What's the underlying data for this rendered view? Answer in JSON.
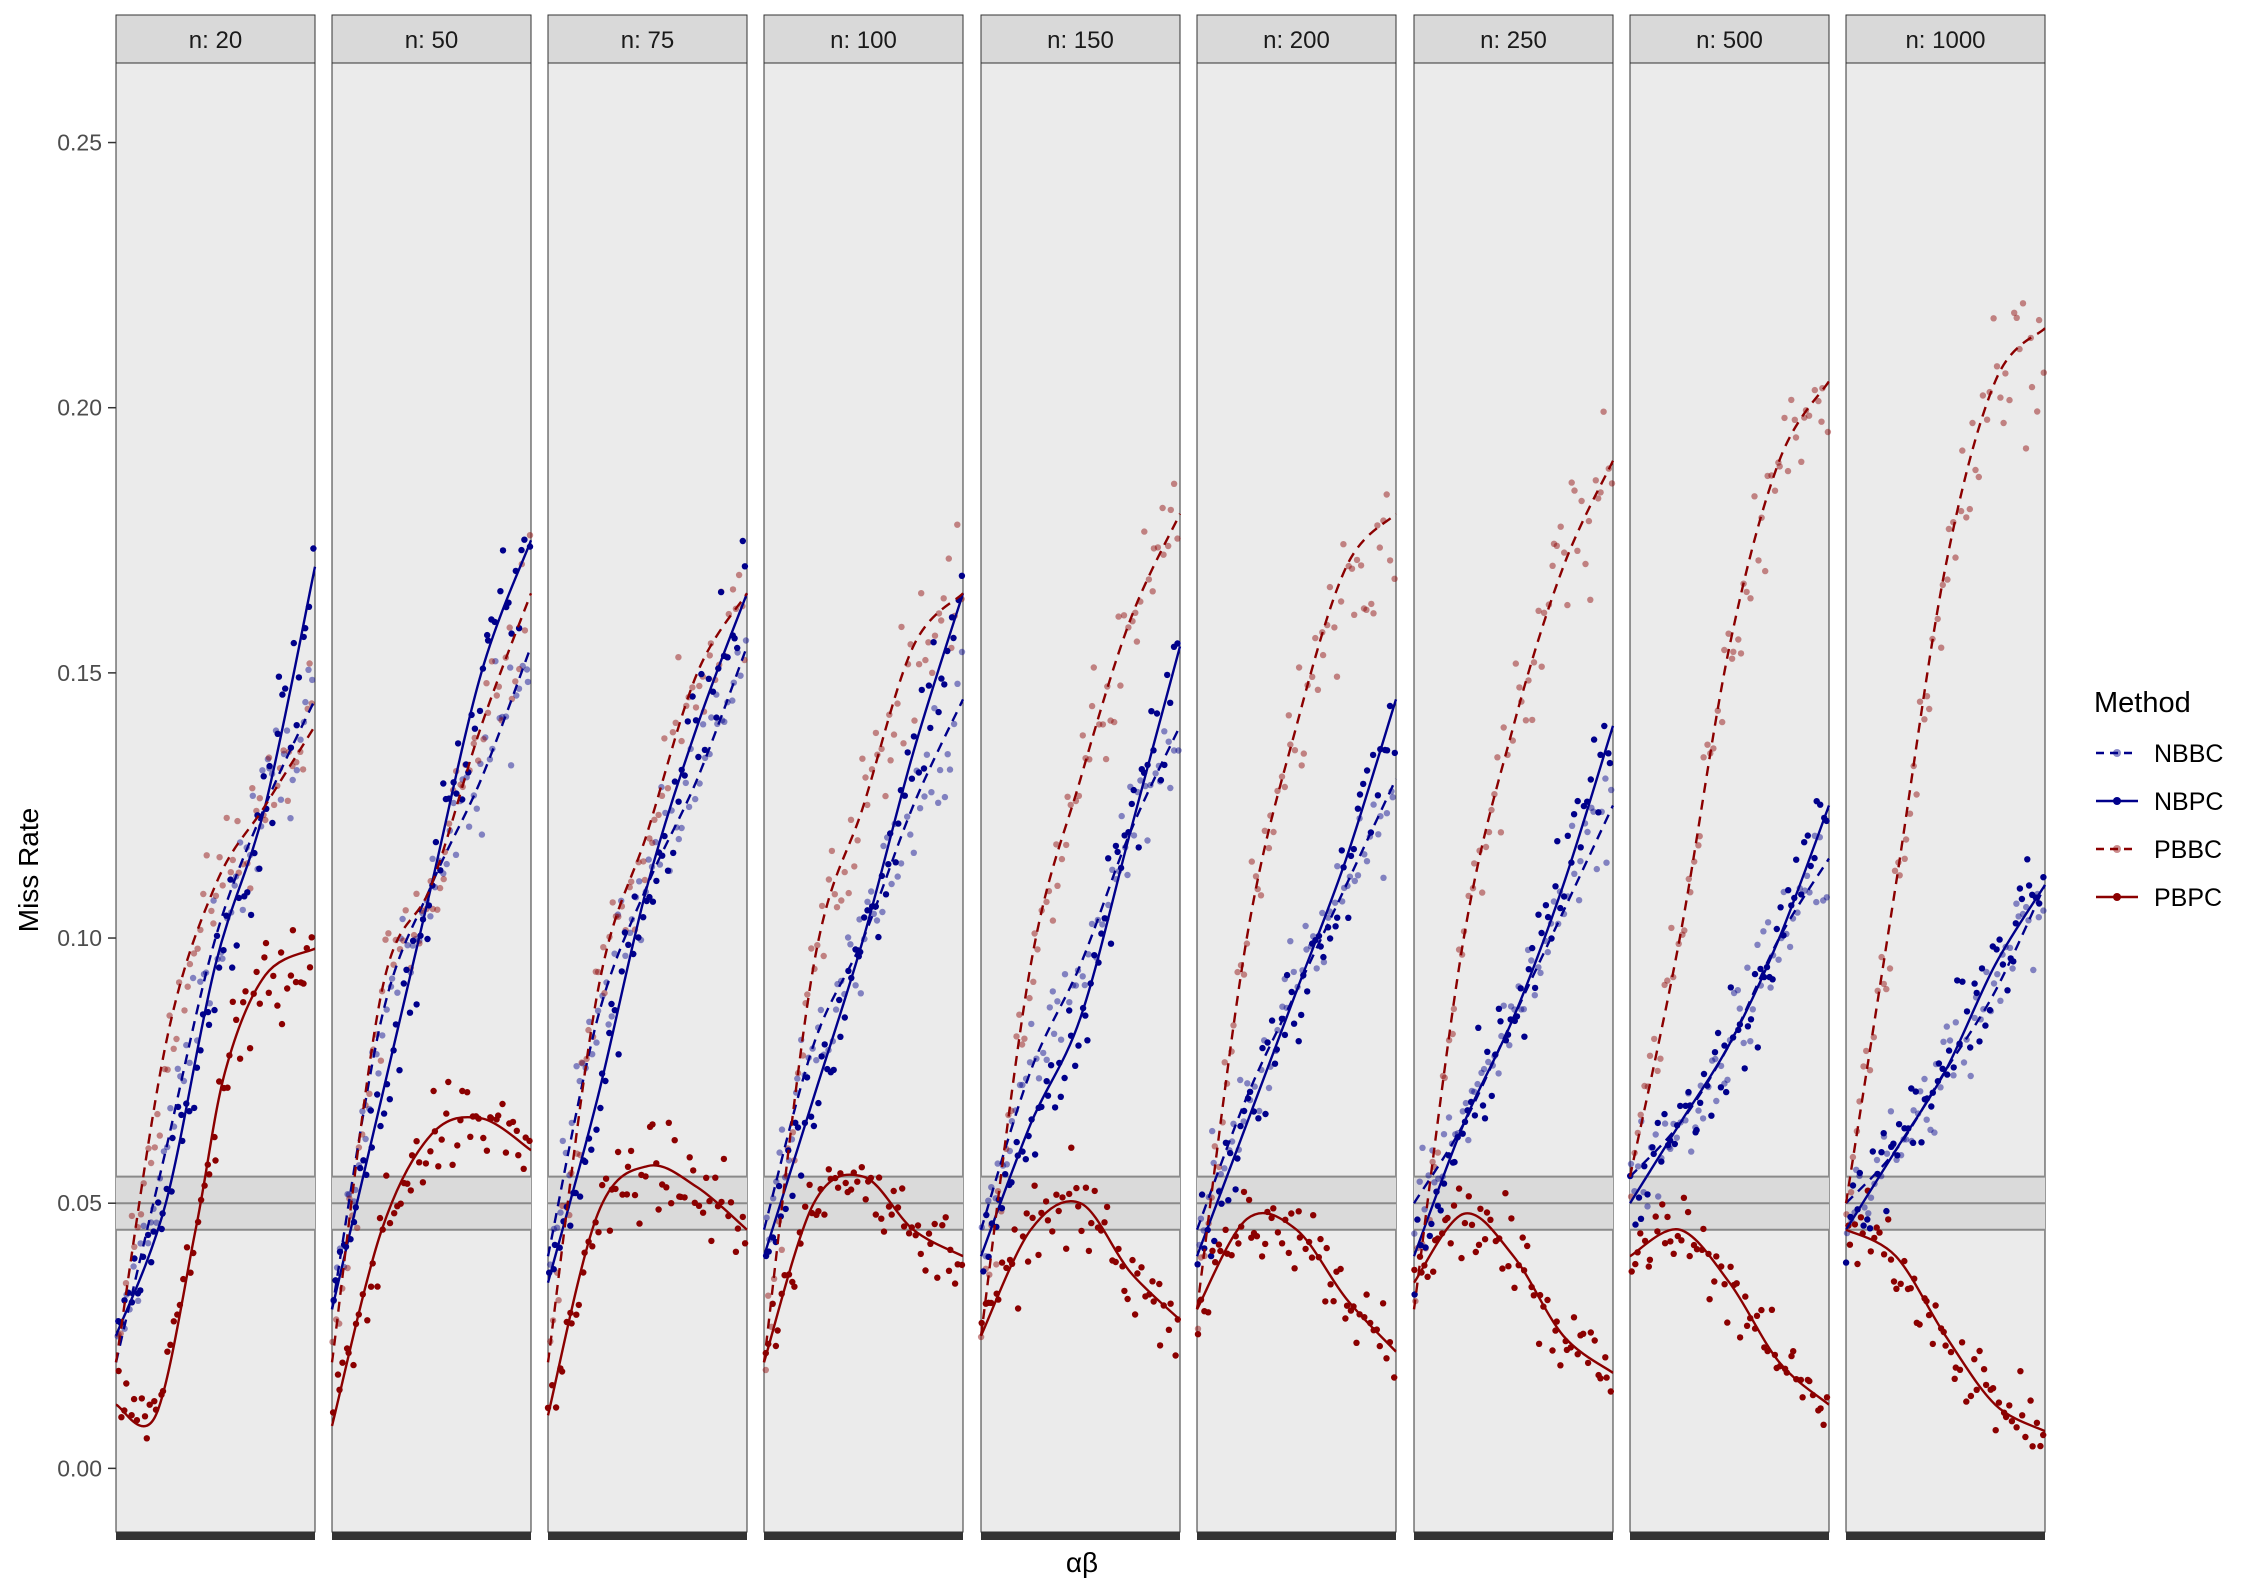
{
  "chart_data": {
    "type": "scatter",
    "xlabel": "αβ",
    "ylabel": "Miss Rate",
    "ylim": [
      -0.012,
      0.265
    ],
    "yticks": [
      0.0,
      0.05,
      0.1,
      0.15,
      0.2,
      0.25
    ],
    "ytick_labels": [
      "0.00",
      "0.05",
      "0.10",
      "0.15",
      "0.20",
      "0.25"
    ],
    "reference_band": {
      "lower": 0.045,
      "center": 0.05,
      "upper": 0.055
    },
    "grid": false,
    "legend": {
      "title": "Method",
      "position": "right",
      "entries": [
        {
          "name": "NBBC",
          "color": "#00008B",
          "linetype": "dashed",
          "point_alpha": 0.45
        },
        {
          "name": "NBPC",
          "color": "#00008B",
          "linetype": "solid",
          "point_alpha": 1.0
        },
        {
          "name": "PBBC",
          "color": "#8B0000",
          "linetype": "dashed",
          "point_alpha": 0.45
        },
        {
          "name": "PBPC",
          "color": "#8B0000",
          "linetype": "solid",
          "point_alpha": 1.0
        }
      ]
    },
    "facets": [
      {
        "label": "n: 20",
        "curves": {
          "NBBC": [
            [
              0,
              0.02
            ],
            [
              0.25,
              0.06
            ],
            [
              0.5,
              0.1
            ],
            [
              0.75,
              0.125
            ],
            [
              1,
              0.145
            ]
          ],
          "NBPC": [
            [
              0,
              0.025
            ],
            [
              0.25,
              0.05
            ],
            [
              0.5,
              0.095
            ],
            [
              0.75,
              0.125
            ],
            [
              1,
              0.17
            ]
          ],
          "PBBC": [
            [
              0,
              0.02
            ],
            [
              0.25,
              0.08
            ],
            [
              0.5,
              0.11
            ],
            [
              0.75,
              0.125
            ],
            [
              1,
              0.14
            ]
          ],
          "PBPC": [
            [
              0,
              0.012
            ],
            [
              0.2,
              0.01
            ],
            [
              0.4,
              0.045
            ],
            [
              0.55,
              0.075
            ],
            [
              0.75,
              0.093
            ],
            [
              1,
              0.098
            ]
          ]
        }
      },
      {
        "label": "n: 50",
        "curves": {
          "NBBC": [
            [
              0,
              0.03
            ],
            [
              0.25,
              0.085
            ],
            [
              0.5,
              0.11
            ],
            [
              0.75,
              0.13
            ],
            [
              1,
              0.155
            ]
          ],
          "NBPC": [
            [
              0,
              0.03
            ],
            [
              0.25,
              0.07
            ],
            [
              0.5,
              0.11
            ],
            [
              0.75,
              0.15
            ],
            [
              1,
              0.175
            ]
          ],
          "PBBC": [
            [
              0,
              0.02
            ],
            [
              0.25,
              0.09
            ],
            [
              0.5,
              0.11
            ],
            [
              0.75,
              0.14
            ],
            [
              1,
              0.165
            ]
          ],
          "PBPC": [
            [
              0,
              0.008
            ],
            [
              0.25,
              0.045
            ],
            [
              0.5,
              0.063
            ],
            [
              0.75,
              0.066
            ],
            [
              1,
              0.06
            ]
          ]
        }
      },
      {
        "label": "n: 75",
        "curves": {
          "NBBC": [
            [
              0,
              0.04
            ],
            [
              0.25,
              0.085
            ],
            [
              0.5,
              0.11
            ],
            [
              0.75,
              0.13
            ],
            [
              1,
              0.155
            ]
          ],
          "NBPC": [
            [
              0,
              0.035
            ],
            [
              0.25,
              0.07
            ],
            [
              0.5,
              0.11
            ],
            [
              0.75,
              0.14
            ],
            [
              1,
              0.165
            ]
          ],
          "PBBC": [
            [
              0,
              0.02
            ],
            [
              0.25,
              0.09
            ],
            [
              0.5,
              0.12
            ],
            [
              0.75,
              0.15
            ],
            [
              1,
              0.165
            ]
          ],
          "PBPC": [
            [
              0,
              0.01
            ],
            [
              0.25,
              0.048
            ],
            [
              0.5,
              0.057
            ],
            [
              0.75,
              0.053
            ],
            [
              1,
              0.045
            ]
          ]
        }
      },
      {
        "label": "n: 100",
        "curves": {
          "NBBC": [
            [
              0,
              0.045
            ],
            [
              0.25,
              0.08
            ],
            [
              0.5,
              0.1
            ],
            [
              0.75,
              0.125
            ],
            [
              1,
              0.145
            ]
          ],
          "NBPC": [
            [
              0,
              0.04
            ],
            [
              0.25,
              0.07
            ],
            [
              0.5,
              0.1
            ],
            [
              0.75,
              0.135
            ],
            [
              1,
              0.165
            ]
          ],
          "PBBC": [
            [
              0,
              0.02
            ],
            [
              0.25,
              0.095
            ],
            [
              0.5,
              0.125
            ],
            [
              0.75,
              0.155
            ],
            [
              1,
              0.165
            ]
          ],
          "PBPC": [
            [
              0,
              0.02
            ],
            [
              0.25,
              0.05
            ],
            [
              0.5,
              0.055
            ],
            [
              0.75,
              0.045
            ],
            [
              1,
              0.04
            ]
          ]
        }
      },
      {
        "label": "n: 150",
        "curves": {
          "NBBC": [
            [
              0,
              0.045
            ],
            [
              0.25,
              0.075
            ],
            [
              0.5,
              0.095
            ],
            [
              0.75,
              0.12
            ],
            [
              1,
              0.14
            ]
          ],
          "NBPC": [
            [
              0,
              0.04
            ],
            [
              0.25,
              0.065
            ],
            [
              0.5,
              0.085
            ],
            [
              0.75,
              0.12
            ],
            [
              1,
              0.155
            ]
          ],
          "PBBC": [
            [
              0,
              0.025
            ],
            [
              0.25,
              0.095
            ],
            [
              0.5,
              0.13
            ],
            [
              0.75,
              0.16
            ],
            [
              1,
              0.18
            ]
          ],
          "PBPC": [
            [
              0,
              0.025
            ],
            [
              0.25,
              0.045
            ],
            [
              0.5,
              0.05
            ],
            [
              0.75,
              0.037
            ],
            [
              1,
              0.028
            ]
          ]
        }
      },
      {
        "label": "n: 200",
        "curves": {
          "NBBC": [
            [
              0,
              0.045
            ],
            [
              0.25,
              0.07
            ],
            [
              0.5,
              0.09
            ],
            [
              0.75,
              0.11
            ],
            [
              1,
              0.13
            ]
          ],
          "NBPC": [
            [
              0,
              0.04
            ],
            [
              0.25,
              0.065
            ],
            [
              0.5,
              0.09
            ],
            [
              0.75,
              0.115
            ],
            [
              1,
              0.145
            ]
          ],
          "PBBC": [
            [
              0,
              0.03
            ],
            [
              0.25,
              0.1
            ],
            [
              0.5,
              0.14
            ],
            [
              0.75,
              0.17
            ],
            [
              1,
              0.18
            ]
          ],
          "PBPC": [
            [
              0,
              0.03
            ],
            [
              0.25,
              0.047
            ],
            [
              0.5,
              0.045
            ],
            [
              0.75,
              0.032
            ],
            [
              1,
              0.022
            ]
          ]
        }
      },
      {
        "label": "n: 250",
        "curves": {
          "NBBC": [
            [
              0,
              0.05
            ],
            [
              0.25,
              0.065
            ],
            [
              0.5,
              0.085
            ],
            [
              0.75,
              0.105
            ],
            [
              1,
              0.125
            ]
          ],
          "NBPC": [
            [
              0,
              0.04
            ],
            [
              0.25,
              0.065
            ],
            [
              0.5,
              0.085
            ],
            [
              0.75,
              0.11
            ],
            [
              1,
              0.14
            ]
          ],
          "PBBC": [
            [
              0,
              0.03
            ],
            [
              0.25,
              0.1
            ],
            [
              0.5,
              0.14
            ],
            [
              0.75,
              0.17
            ],
            [
              1,
              0.19
            ]
          ],
          "PBPC": [
            [
              0,
              0.035
            ],
            [
              0.25,
              0.048
            ],
            [
              0.5,
              0.04
            ],
            [
              0.75,
              0.025
            ],
            [
              1,
              0.018
            ]
          ]
        }
      },
      {
        "label": "n: 500",
        "curves": {
          "NBBC": [
            [
              0,
              0.055
            ],
            [
              0.25,
              0.065
            ],
            [
              0.5,
              0.08
            ],
            [
              0.75,
              0.1
            ],
            [
              1,
              0.115
            ]
          ],
          "NBPC": [
            [
              0,
              0.05
            ],
            [
              0.25,
              0.065
            ],
            [
              0.5,
              0.08
            ],
            [
              0.75,
              0.1
            ],
            [
              1,
              0.125
            ]
          ],
          "PBBC": [
            [
              0,
              0.055
            ],
            [
              0.25,
              0.1
            ],
            [
              0.5,
              0.155
            ],
            [
              0.75,
              0.19
            ],
            [
              1,
              0.205
            ]
          ],
          "PBPC": [
            [
              0,
              0.04
            ],
            [
              0.25,
              0.045
            ],
            [
              0.5,
              0.035
            ],
            [
              0.75,
              0.02
            ],
            [
              1,
              0.012
            ]
          ]
        }
      },
      {
        "label": "n: 1000",
        "curves": {
          "NBBC": [
            [
              0,
              0.05
            ],
            [
              0.25,
              0.06
            ],
            [
              0.5,
              0.075
            ],
            [
              0.75,
              0.09
            ],
            [
              1,
              0.11
            ]
          ],
          "NBPC": [
            [
              0,
              0.045
            ],
            [
              0.25,
              0.06
            ],
            [
              0.5,
              0.075
            ],
            [
              0.75,
              0.095
            ],
            [
              1,
              0.11
            ]
          ],
          "PBBC": [
            [
              0,
              0.05
            ],
            [
              0.25,
              0.11
            ],
            [
              0.5,
              0.17
            ],
            [
              0.75,
              0.205
            ],
            [
              1,
              0.215
            ]
          ],
          "PBPC": [
            [
              0,
              0.045
            ],
            [
              0.25,
              0.04
            ],
            [
              0.5,
              0.025
            ],
            [
              0.75,
              0.012
            ],
            [
              1,
              0.007
            ]
          ]
        }
      }
    ]
  }
}
